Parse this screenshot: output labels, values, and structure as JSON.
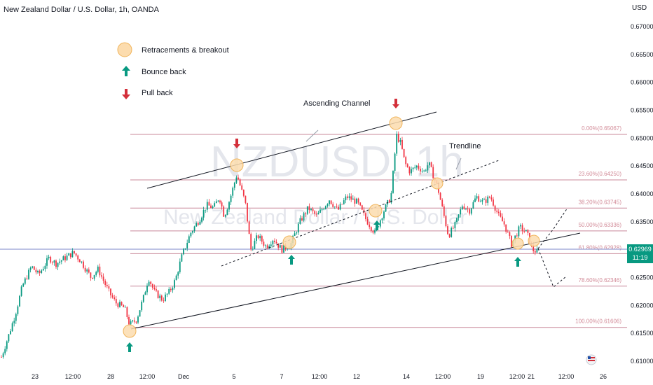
{
  "header": {
    "title": "New Zealand Dollar / U.S. Dollar, 1h, OANDA",
    "currency": "USD"
  },
  "watermark": {
    "symbol": "NZDUSD, 1h",
    "name": "New Zealand Dollar / U.S. Dollar"
  },
  "legend": {
    "items": [
      {
        "icon": "circle-marker-icon",
        "label": "Retracements & breakout"
      },
      {
        "icon": "arrow-up-icon",
        "label": "Bounce back"
      },
      {
        "icon": "arrow-down-icon",
        "label": "Pull back"
      }
    ]
  },
  "annotations": {
    "ascending_channel": "Ascending Channel",
    "trendline": "Trendline"
  },
  "current_price": {
    "value": "0.62969",
    "countdown": "11:19"
  },
  "colors": {
    "up": "#089981",
    "down": "#f23645",
    "fib": "#c8889a",
    "circle_fill": "#fcdcae",
    "circle_stroke": "#f0b45a",
    "arrow_up": "#089981",
    "arrow_down": "#d32f3a"
  },
  "chart_data": {
    "type": "candlestick",
    "title": "New Zealand Dollar / U.S. Dollar, 1h, OANDA",
    "y_axis": {
      "ticks": [
        "0.67000",
        "0.66500",
        "0.66000",
        "0.65500",
        "0.65000",
        "0.64500",
        "0.64000",
        "0.63500",
        "0.63000",
        "0.62500",
        "0.62000",
        "0.61500",
        "0.61000"
      ],
      "ylim": [
        0.6095,
        0.672
      ]
    },
    "x_axis": {
      "ticks": [
        "23",
        "12:00",
        "28",
        "12:00",
        "Dec",
        "5",
        "7",
        "12:00",
        "12",
        "14",
        "12:00",
        "19",
        "12:00",
        "21",
        "12:00",
        "26"
      ]
    },
    "fibonacci": [
      {
        "label": "0.00%(0.65067)",
        "value": 0.65067
      },
      {
        "label": "23.60%(0.64250)",
        "value": 0.6425
      },
      {
        "label": "38.20%(0.63745)",
        "value": 0.63745
      },
      {
        "label": "50.00%(0.63336)",
        "value": 0.63336
      },
      {
        "label": "61.80%(0.62928)",
        "value": 0.62928
      },
      {
        "label": "78.60%(0.62346)",
        "value": 0.62346
      },
      {
        "label": "100.00%(0.61606)",
        "value": 0.61606
      }
    ],
    "price_path": [
      [
        0.61,
        0
      ],
      [
        0.6145,
        12
      ],
      [
        0.6185,
        22
      ],
      [
        0.6235,
        32
      ],
      [
        0.627,
        45
      ],
      [
        0.6255,
        55
      ],
      [
        0.6285,
        70
      ],
      [
        0.6275,
        80
      ],
      [
        0.6295,
        105
      ],
      [
        0.628,
        115
      ],
      [
        0.625,
        130
      ],
      [
        0.6265,
        140
      ],
      [
        0.6225,
        155
      ],
      [
        0.6205,
        165
      ],
      [
        0.6195,
        178
      ],
      [
        0.6165,
        185
      ],
      [
        0.6175,
        195
      ],
      [
        0.6215,
        205
      ],
      [
        0.625,
        212
      ],
      [
        0.6225,
        220
      ],
      [
        0.621,
        232
      ],
      [
        0.6225,
        242
      ],
      [
        0.6245,
        250
      ],
      [
        0.629,
        260
      ],
      [
        0.633,
        272
      ],
      [
        0.6355,
        285
      ],
      [
        0.638,
        295
      ],
      [
        0.6375,
        305
      ],
      [
        0.6395,
        313
      ],
      [
        0.636,
        320
      ],
      [
        0.639,
        328
      ],
      [
        0.6435,
        338
      ],
      [
        0.6405,
        345
      ],
      [
        0.6385,
        350
      ],
      [
        0.63,
        358
      ],
      [
        0.6325,
        368
      ],
      [
        0.6305,
        380
      ],
      [
        0.632,
        390
      ],
      [
        0.63,
        402
      ],
      [
        0.631,
        415
      ],
      [
        0.635,
        428
      ],
      [
        0.6375,
        440
      ],
      [
        0.636,
        452
      ],
      [
        0.639,
        470
      ],
      [
        0.637,
        482
      ],
      [
        0.6395,
        495
      ],
      [
        0.6385,
        510
      ],
      [
        0.6355,
        522
      ],
      [
        0.633,
        535
      ],
      [
        0.637,
        548
      ],
      [
        0.6395,
        558
      ],
      [
        0.6505,
        566
      ],
      [
        0.649,
        572
      ],
      [
        0.6455,
        578
      ],
      [
        0.644,
        585
      ],
      [
        0.645,
        595
      ],
      [
        0.644,
        605
      ],
      [
        0.6455,
        612
      ],
      [
        0.641,
        625
      ],
      [
        0.637,
        632
      ],
      [
        0.6325,
        640
      ],
      [
        0.6345,
        650
      ],
      [
        0.638,
        660
      ],
      [
        0.637,
        670
      ],
      [
        0.6395,
        680
      ],
      [
        0.6385,
        690
      ],
      [
        0.6395,
        700
      ],
      [
        0.636,
        712
      ],
      [
        0.6345,
        720
      ],
      [
        0.631,
        730
      ],
      [
        0.634,
        742
      ],
      [
        0.633,
        752
      ],
      [
        0.63,
        760
      ],
      [
        0.6295,
        768
      ]
    ],
    "current": 0.62969
  }
}
